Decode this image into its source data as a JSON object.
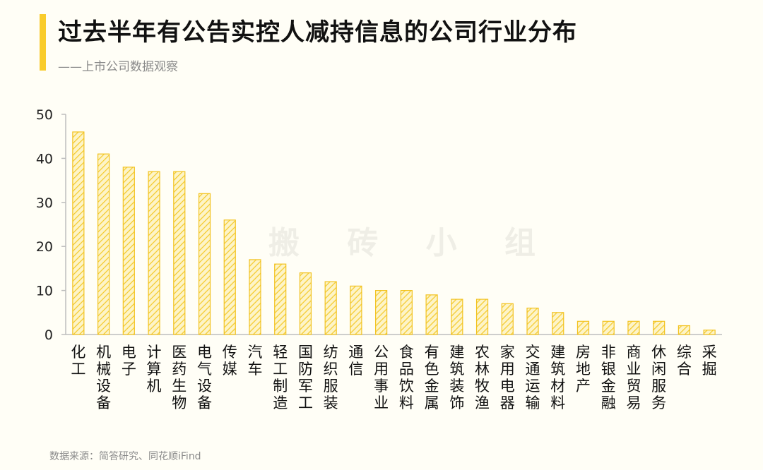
{
  "title": "过去半年有公告实控人减持信息的公司行业分布",
  "subtitle": "——上市公司数据观察",
  "watermark": "搬 砖 小 组",
  "source": "数据来源：简答研究、同花顺iFind",
  "colors": {
    "bar_fill": "#fbe9a0",
    "bar_stroke": "#f2c21f",
    "accent": "#f9cc2c",
    "axis": "#bdbdbd"
  },
  "chart_data": {
    "type": "bar",
    "categories": [
      "化工",
      "机械设备",
      "电子",
      "计算机",
      "医药生物",
      "电气设备",
      "传媒",
      "汽车",
      "轻工制造",
      "国防军工",
      "纺织服装",
      "通信",
      "公用事业",
      "食品饮料",
      "有色金属",
      "建筑装饰",
      "农林牧渔",
      "家用电器",
      "交通运输",
      "建筑材料",
      "房地产",
      "非银金融",
      "商业贸易",
      "休闲服务",
      "综合",
      "采掘"
    ],
    "values": [
      46,
      41,
      38,
      37,
      37,
      32,
      26,
      17,
      16,
      14,
      12,
      11,
      10,
      10,
      9,
      8,
      8,
      7,
      6,
      5,
      3,
      3,
      3,
      3,
      2,
      1
    ],
    "ylim": [
      0,
      50
    ],
    "yticks": [
      0,
      10,
      20,
      30,
      40,
      50
    ],
    "xlabel": "",
    "ylabel": "",
    "grid": false
  }
}
